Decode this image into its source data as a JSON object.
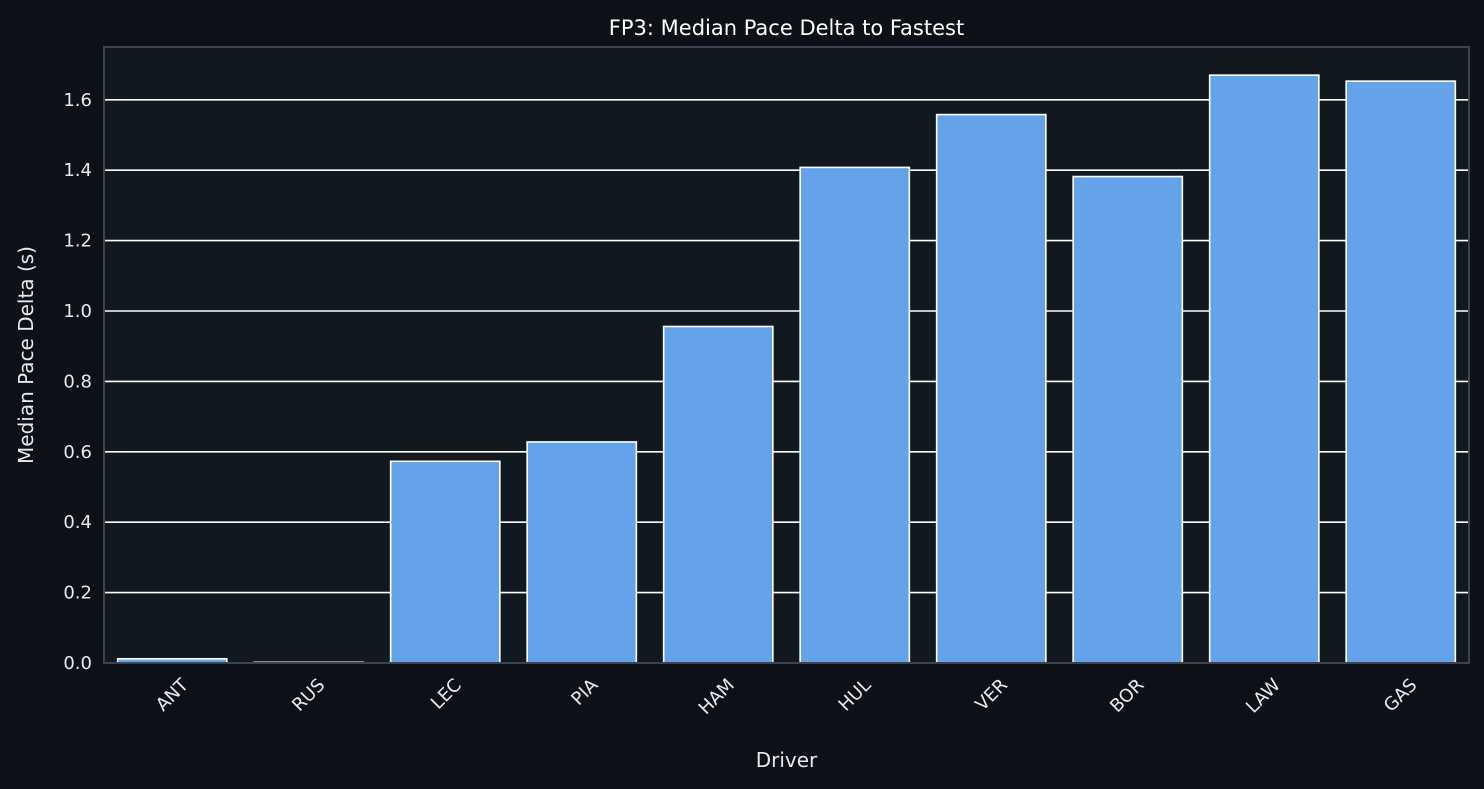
{
  "chart_data": {
    "type": "bar",
    "title": "FP3: Median Pace Delta to Fastest",
    "xlabel": "Driver",
    "ylabel": "Median Pace Delta (s)",
    "categories": [
      "ANT",
      "RUS",
      "LEC",
      "PIA",
      "HAM",
      "HUL",
      "VER",
      "BOR",
      "LAW",
      "GAS"
    ],
    "values": [
      0.012,
      0.002,
      0.573,
      0.628,
      0.956,
      1.408,
      1.558,
      1.382,
      1.67,
      1.653
    ],
    "ylim": [
      0,
      1.75
    ],
    "yticks": [
      "0.0",
      "0.2",
      "0.4",
      "0.6",
      "0.8",
      "1.0",
      "1.2",
      "1.4",
      "1.6"
    ],
    "grid": "horizontal",
    "legend": "none"
  },
  "colors": {
    "background": "#0d1117",
    "plot_background": "#121820",
    "bar_fill": "#64a2e9",
    "bar_edge": "#ffffff",
    "grid": "#ffffff",
    "spine": "#3b4350"
  }
}
